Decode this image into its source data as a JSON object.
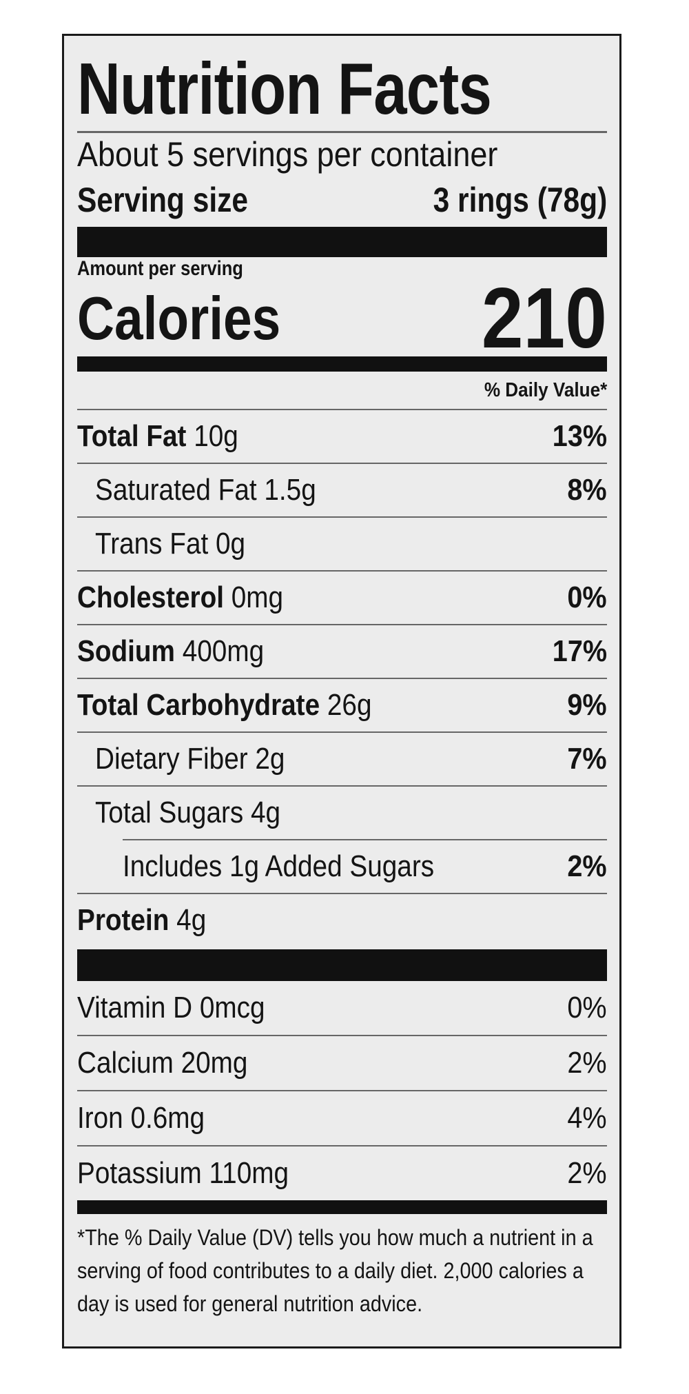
{
  "title": "Nutrition Facts",
  "servings": "About 5 servings per container",
  "serving_size": {
    "label": "Serving size",
    "value": "3 rings (78g)"
  },
  "amount_per_serving": "Amount per serving",
  "calories": {
    "label": "Calories",
    "value": "210"
  },
  "dv_header": "% Daily Value*",
  "nutrients": [
    {
      "name": "Total Fat",
      "amount": "10g",
      "dv": "13%"
    },
    {
      "name": "Saturated Fat",
      "amount": "1.5g",
      "dv": "8%"
    },
    {
      "name": "Trans Fat",
      "amount": "0g"
    },
    {
      "name": "Cholesterol",
      "amount": "0mg",
      "dv": "0%"
    },
    {
      "name": "Sodium",
      "amount": "400mg",
      "dv": "17%"
    },
    {
      "name": "Total Carbohydrate",
      "amount": "26g",
      "dv": "9%"
    },
    {
      "name": "Dietary Fiber",
      "amount": "2g",
      "dv": "7%"
    },
    {
      "name": "Total Sugars",
      "amount": "4g"
    },
    {
      "name": "Includes 1g Added Sugars",
      "dv": "2%"
    },
    {
      "name": "Protein",
      "amount": "4g"
    }
  ],
  "vitamins": [
    {
      "name": "Vitamin D 0mcg",
      "dv": "0%"
    },
    {
      "name": "Calcium 20mg",
      "dv": "2%"
    },
    {
      "name": "Iron 0.6mg",
      "dv": "4%"
    },
    {
      "name": "Potassium 110mg",
      "dv": "2%"
    }
  ],
  "footnote": "*The % Daily Value (DV) tells you how much a nutrient in a serving of food contributes to a daily diet. 2,000 calories a day is used for general nutrition advice."
}
